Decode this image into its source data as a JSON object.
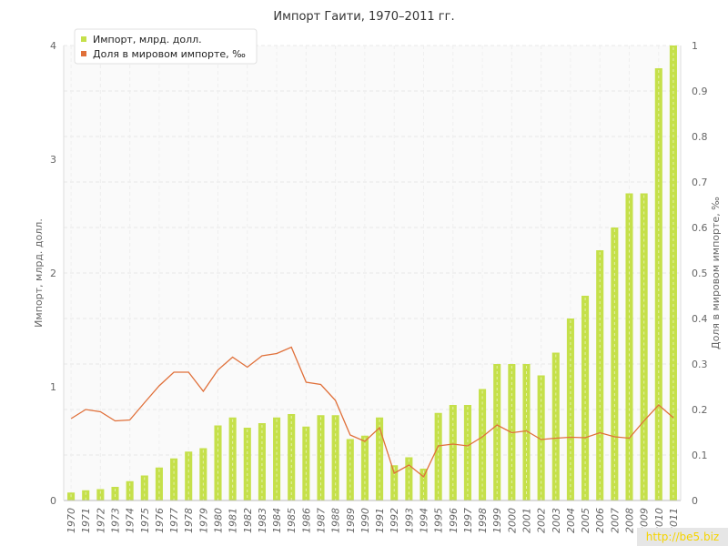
{
  "chart_data": {
    "type": "bar",
    "title": "Импорт Гаити, 1970–2011 гг.",
    "ylabel": "Импорт, млрд. долл.",
    "y2label": "Доля в мировом импорте, ‰",
    "ylim": [
      0,
      4
    ],
    "y2lim": [
      0,
      1
    ],
    "yticks": [
      "0",
      "1",
      "2",
      "3",
      "4"
    ],
    "y2ticks": [
      "0",
      "0.1",
      "0.2",
      "0.3",
      "0.4",
      "0.5",
      "0.6",
      "0.7",
      "0.8",
      "0.9",
      "1"
    ],
    "grid": true,
    "legend_position": "top-left",
    "categories": [
      "1970",
      "1971",
      "1972",
      "1973",
      "1974",
      "1975",
      "1976",
      "1977",
      "1978",
      "1979",
      "1980",
      "1981",
      "1982",
      "1983",
      "1984",
      "1985",
      "1986",
      "1987",
      "1988",
      "1989",
      "1990",
      "1991",
      "1992",
      "1993",
      "1994",
      "1995",
      "1996",
      "1997",
      "1998",
      "1999",
      "2000",
      "2001",
      "2002",
      "2003",
      "2004",
      "2005",
      "2006",
      "2007",
      "2008",
      "2009",
      "2010",
      "2011"
    ],
    "series": [
      {
        "name": "Импорт, млрд. долл.",
        "type": "bar",
        "axis": "left",
        "color": "#c5e04a",
        "values": [
          0.07,
          0.09,
          0.1,
          0.12,
          0.17,
          0.22,
          0.29,
          0.37,
          0.43,
          0.46,
          0.66,
          0.73,
          0.64,
          0.68,
          0.73,
          0.76,
          0.65,
          0.75,
          0.75,
          0.54,
          0.57,
          0.73,
          0.31,
          0.38,
          0.28,
          0.77,
          0.84,
          0.84,
          0.98,
          1.2,
          1.2,
          1.2,
          1.1,
          1.3,
          1.6,
          1.8,
          2.2,
          2.4,
          2.7,
          2.7,
          3.8,
          4.0
        ]
      },
      {
        "name": "Доля в мировом импорте, ‰",
        "type": "line",
        "axis": "right",
        "color": "#e0703a",
        "values": [
          0.18,
          0.2,
          0.195,
          0.175,
          0.177,
          0.215,
          0.252,
          0.282,
          0.282,
          0.24,
          0.287,
          0.315,
          0.293,
          0.318,
          0.323,
          0.337,
          0.26,
          0.255,
          0.22,
          0.144,
          0.13,
          0.16,
          0.06,
          0.078,
          0.052,
          0.12,
          0.124,
          0.12,
          0.14,
          0.166,
          0.149,
          0.153,
          0.134,
          0.137,
          0.139,
          0.138,
          0.149,
          0.14,
          0.137,
          0.175,
          0.21,
          0.182
        ]
      }
    ]
  },
  "watermark": "http://be5.biz"
}
